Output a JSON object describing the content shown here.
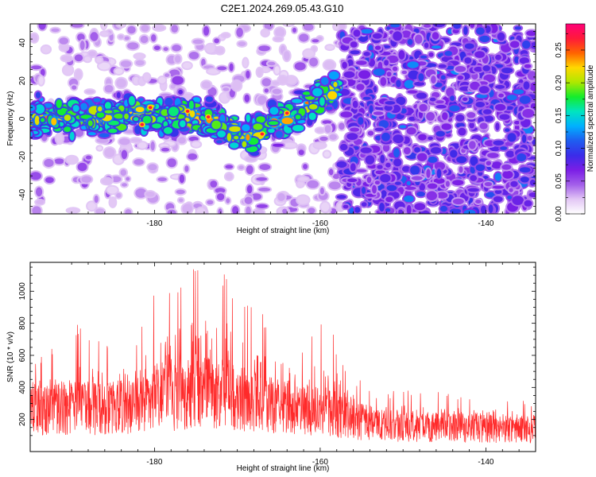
{
  "chart_data": [
    {
      "type": "heatmap",
      "title": "C2E1.2024.269.05.43.G10",
      "xlabel": "Height of straight line (km)",
      "ylabel": "Frequency (Hz)",
      "xlim": [
        -195,
        -134
      ],
      "ylim": [
        -50,
        50
      ],
      "x_ticks": [
        "-180",
        "-160",
        "-140"
      ],
      "y_ticks": [
        "40",
        "20",
        "0",
        "-20",
        "-40"
      ],
      "colorbar": {
        "label": "Normalized spectral amplitude",
        "range": [
          0,
          0.29
        ],
        "ticks": [
          "0.00",
          "0.05",
          "0.10",
          "0.15",
          "0.20",
          "0.25"
        ],
        "colors": [
          "#ffffff",
          "#e2c6f5",
          "#a35fea",
          "#7b1ee6",
          "#3a2ce9",
          "#1f5df0",
          "#00b0ff",
          "#00e4c0",
          "#14ec2c",
          "#aee800",
          "#ffd800",
          "#ff6400",
          "#ff1a3a",
          "#ff0078"
        ]
      },
      "signal_band": {
        "description_of_pattern": "strong Doppler band near 0 Hz from -195 to -158 km; broadband noise above -157 km",
        "points": [
          {
            "x": -194,
            "f": 0
          },
          {
            "x": -190,
            "f": 1
          },
          {
            "x": -185,
            "f": 1
          },
          {
            "x": -181,
            "f": 3
          },
          {
            "x": -178,
            "f": 1
          },
          {
            "x": -175,
            "f": 2
          },
          {
            "x": -172,
            "f": -5
          },
          {
            "x": -169,
            "f": -10
          },
          {
            "x": -166,
            "f": -3
          },
          {
            "x": -163,
            "f": 1
          },
          {
            "x": -160,
            "f": 12
          },
          {
            "x": -158,
            "f": 16
          }
        ]
      }
    },
    {
      "type": "line",
      "title": "",
      "xlabel": "Height of straight line (km)",
      "ylabel": "SNR (10 * v/v)",
      "xlim": [
        -195,
        -134
      ],
      "ylim": [
        0,
        1180
      ],
      "x_ticks": [
        "-180",
        "-160",
        "-140"
      ],
      "y_ticks": [
        "200",
        "400",
        "600",
        "800",
        "1000"
      ],
      "color": "#ff2a2a",
      "series_envelope": [
        {
          "x": -195,
          "mean": 280,
          "peak": 560
        },
        {
          "x": -190,
          "mean": 300,
          "peak": 820
        },
        {
          "x": -186,
          "mean": 290,
          "peak": 700
        },
        {
          "x": -182,
          "mean": 310,
          "peak": 720
        },
        {
          "x": -180,
          "mean": 340,
          "peak": 1000
        },
        {
          "x": -178,
          "mean": 360,
          "peak": 1120
        },
        {
          "x": -176,
          "mean": 390,
          "peak": 1150
        },
        {
          "x": -174,
          "mean": 400,
          "peak": 1185
        },
        {
          "x": -171,
          "mean": 370,
          "peak": 1150
        },
        {
          "x": -168,
          "mean": 330,
          "peak": 880
        },
        {
          "x": -165,
          "mean": 300,
          "peak": 820
        },
        {
          "x": -162,
          "mean": 270,
          "peak": 620
        },
        {
          "x": -159.5,
          "mean": 280,
          "peak": 910
        },
        {
          "x": -157,
          "mean": 230,
          "peak": 560
        },
        {
          "x": -154,
          "mean": 180,
          "peak": 380
        },
        {
          "x": -148,
          "mean": 170,
          "peak": 380
        },
        {
          "x": -142,
          "mean": 160,
          "peak": 360
        },
        {
          "x": -136,
          "mean": 150,
          "peak": 350
        },
        {
          "x": -134,
          "mean": 150,
          "peak": 300
        }
      ]
    }
  ]
}
